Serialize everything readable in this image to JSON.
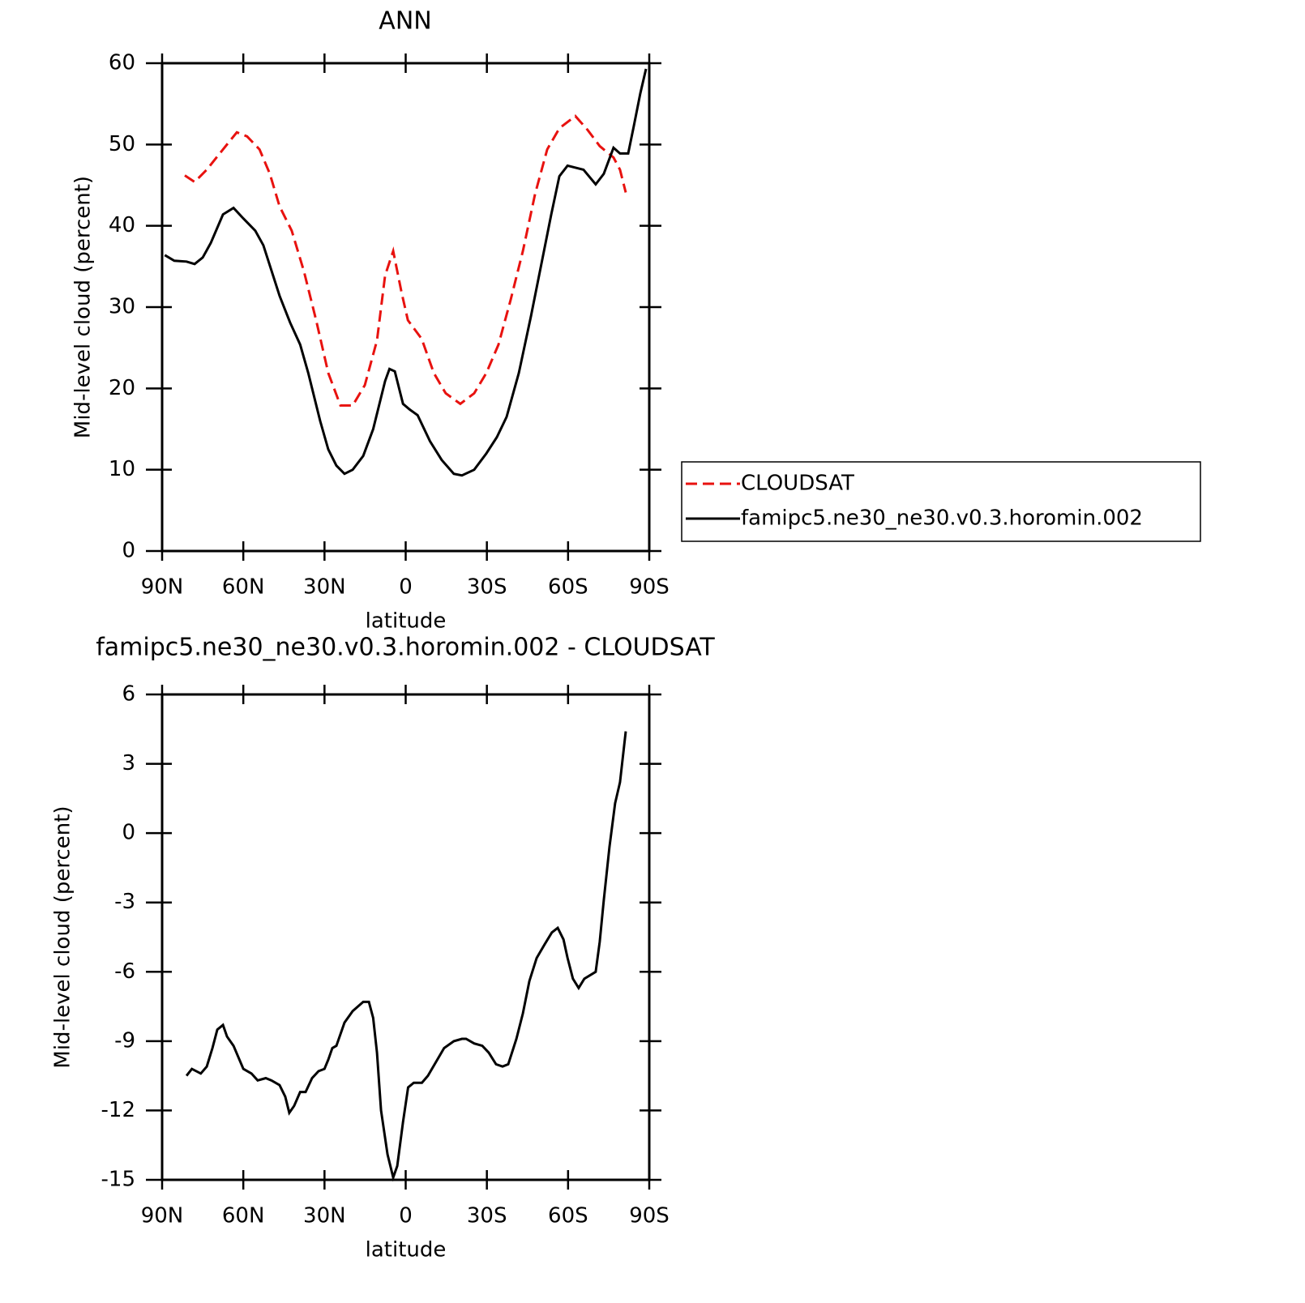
{
  "chart_data": [
    {
      "type": "line",
      "title": "ANN",
      "xlabel": "latitude",
      "ylabel": "Mid-level cloud (percent)",
      "xlim": [
        90,
        -90
      ],
      "xticks": [
        {
          "value": 90,
          "label": "90N"
        },
        {
          "value": 60,
          "label": "60N"
        },
        {
          "value": 30,
          "label": "30N"
        },
        0,
        {
          "value": -30,
          "label": "30S"
        },
        {
          "value": -60,
          "label": "60S"
        },
        {
          "value": -90,
          "label": "90S"
        }
      ],
      "ylim": [
        0,
        60
      ],
      "yticks": [
        0,
        10,
        20,
        30,
        40,
        50,
        60
      ],
      "legend": "right",
      "series": [
        {
          "name": "CLOUDSAT",
          "color": "#e8120f",
          "style": "dashed",
          "x": [
            81.6,
            78,
            73.5,
            67.5,
            62.4,
            58.6,
            54,
            50.2,
            46.6,
            42.1,
            37.6,
            33.1,
            28.6,
            24.1,
            19.6,
            15.1,
            10.6,
            7.6,
            4.6,
            1.6,
            -0.8,
            -5.9,
            -10.4,
            -14.8,
            -20.2,
            -25.3,
            -29.8,
            -34.3,
            -38.8,
            -43.3,
            -47.8,
            -52.3,
            -56.8,
            -62.7,
            -67.2,
            -71.7,
            -76.8,
            -79.2,
            -81.3
          ],
          "values": [
            46.2,
            45.4,
            46.9,
            49.4,
            51.5,
            51,
            49.4,
            46.4,
            42.4,
            39.4,
            34.4,
            28.4,
            21.9,
            17.9,
            17.9,
            20.4,
            25.9,
            33.9,
            36.9,
            31.9,
            28.4,
            26.1,
            21.9,
            19.4,
            18.1,
            19.4,
            21.9,
            25.4,
            30.9,
            36.9,
            43.9,
            49.4,
            52,
            53.5,
            51.8,
            49.8,
            48.4,
            46.9,
            44.1
          ]
        },
        {
          "name": "famipc5.ne30_ne30.v0.3.horomin.002",
          "color": "#000000",
          "style": "solid",
          "x": [
            89,
            85.5,
            81,
            78,
            75,
            72,
            67.5,
            63.6,
            60,
            55.6,
            52.6,
            46.6,
            42.7,
            39,
            36,
            31.6,
            28.6,
            25.6,
            22.6,
            19.6,
            15.7,
            12,
            7.6,
            6,
            4,
            1,
            -1.5,
            -4.4,
            -9,
            -13.3,
            -17.8,
            -20.8,
            -25.3,
            -29.8,
            -33.7,
            -37.3,
            -41.8,
            -46.3,
            -50.8,
            -53.8,
            -56.8,
            -59.8,
            -65.7,
            -70.2,
            -73.2,
            -76.8,
            -79.2,
            -82.2,
            -84.3,
            -86.7,
            -88.8
          ],
          "values": [
            36.4,
            35.7,
            35.6,
            35.3,
            36.1,
            37.9,
            41.4,
            42.2,
            40.9,
            39.4,
            37.6,
            31.4,
            28.1,
            25.4,
            21.9,
            16,
            12.5,
            10.5,
            9.5,
            10,
            11.7,
            15,
            20.9,
            22.4,
            22.1,
            18.1,
            17.4,
            16.7,
            13.5,
            11.2,
            9.5,
            9.3,
            10,
            12,
            14,
            16.5,
            21.9,
            28.9,
            36.4,
            41.4,
            46.1,
            47.4,
            46.9,
            45.1,
            46.4,
            49.6,
            48.9,
            48.9,
            52.3,
            56.3,
            59.3
          ]
        }
      ]
    },
    {
      "type": "line",
      "title": "famipc5.ne30_ne30.v0.3.horomin.002 - CLOUDSAT",
      "xlabel": "latitude",
      "ylabel": "Mid-level cloud (percent)",
      "xlim": [
        90,
        -90
      ],
      "xticks": [
        {
          "value": 90,
          "label": "90N"
        },
        {
          "value": 60,
          "label": "60N"
        },
        {
          "value": 30,
          "label": "30N"
        },
        0,
        {
          "value": -30,
          "label": "30S"
        },
        {
          "value": -60,
          "label": "60S"
        },
        {
          "value": -90,
          "label": "90S"
        }
      ],
      "ylim": [
        -15,
        6
      ],
      "yticks": [
        -15,
        -12,
        -9,
        -6,
        -3,
        0,
        3,
        6
      ],
      "series": [
        {
          "color": "#000000",
          "style": "solid",
          "x": [
            81,
            79,
            75.7,
            73.5,
            71.4,
            69.6,
            67.5,
            66,
            63.6,
            60,
            57,
            54.7,
            51.7,
            49.6,
            46.6,
            44.5,
            43,
            41.2,
            39,
            37,
            34.6,
            32.2,
            30,
            28.6,
            27.1,
            25.6,
            22.6,
            19.6,
            15.7,
            13.6,
            12,
            10.6,
            9.1,
            6.7,
            4.6,
            3.1,
            1,
            -0.9,
            -3,
            -6,
            -8.2,
            -11.2,
            -14.2,
            -17.8,
            -20.8,
            -22.3,
            -25.3,
            -28.3,
            -30.7,
            -33.4,
            -35.8,
            -37.9,
            -40.9,
            -43.3,
            -45.7,
            -48.4,
            -51.4,
            -54,
            -56.2,
            -58.3,
            -59.8,
            -61.8,
            -63.9,
            -66,
            -70.2,
            -71.7,
            -73.2,
            -75.3,
            -77.4,
            -79.2,
            -81.3
          ],
          "values": [
            -10.5,
            -10.2,
            -10.4,
            -10.1,
            -9.3,
            -8.5,
            -8.3,
            -8.8,
            -9.2,
            -10.2,
            -10.4,
            -10.7,
            -10.6,
            -10.7,
            -10.9,
            -11.4,
            -12.1,
            -11.8,
            -11.2,
            -11.2,
            -10.6,
            -10.3,
            -10.2,
            -9.8,
            -9.3,
            -9.2,
            -8.2,
            -7.7,
            -7.3,
            -7.3,
            -8,
            -9.5,
            -12,
            -13.9,
            -14.9,
            -14.4,
            -12.5,
            -11,
            -10.8,
            -10.8,
            -10.5,
            -9.9,
            -9.3,
            -9,
            -8.9,
            -8.9,
            -9.1,
            -9.2,
            -9.5,
            -10,
            -10.1,
            -10,
            -8.9,
            -7.8,
            -6.4,
            -5.4,
            -4.8,
            -4.3,
            -4.1,
            -4.6,
            -5.4,
            -6.3,
            -6.7,
            -6.3,
            -6,
            -4.7,
            -2.9,
            -0.6,
            1.3,
            2.2,
            4.4
          ]
        }
      ]
    }
  ]
}
